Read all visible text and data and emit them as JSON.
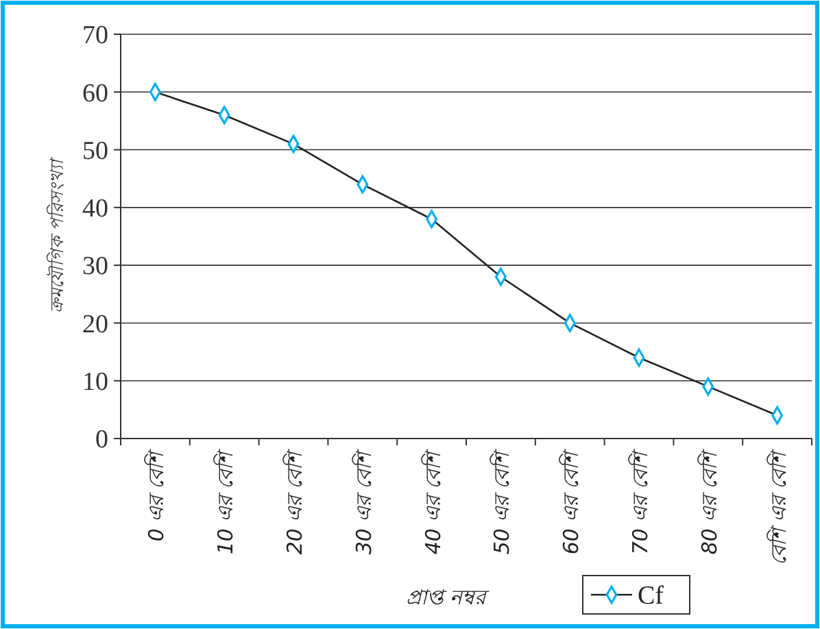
{
  "chart_data": {
    "type": "line",
    "xlabel": "প্রাপ্ত নম্বর",
    "ylabel": "ক্রমযৌগিক পরিসংখ্যা",
    "categories": [
      "0 এর বেশি",
      "10 এর বেশি",
      "20 এর বেশি",
      "30 এর বেশি",
      "40 এর বেশি",
      "50 এর বেশি",
      "60 এর বেশি",
      "70 এর বেশি",
      "80 এর বেশি",
      "বেশি এর বেশি"
    ],
    "series": [
      {
        "name": "Cf",
        "color": "#00aeef",
        "values": [
          60,
          56,
          51,
          44,
          38,
          28,
          20,
          14,
          9,
          4
        ]
      }
    ],
    "ylim": [
      0,
      70
    ],
    "yticks": [
      0,
      10,
      20,
      30,
      40,
      50,
      60,
      70
    ],
    "grid": "y",
    "legend": "bottom",
    "marker": "diamond",
    "line_style": "solid"
  }
}
